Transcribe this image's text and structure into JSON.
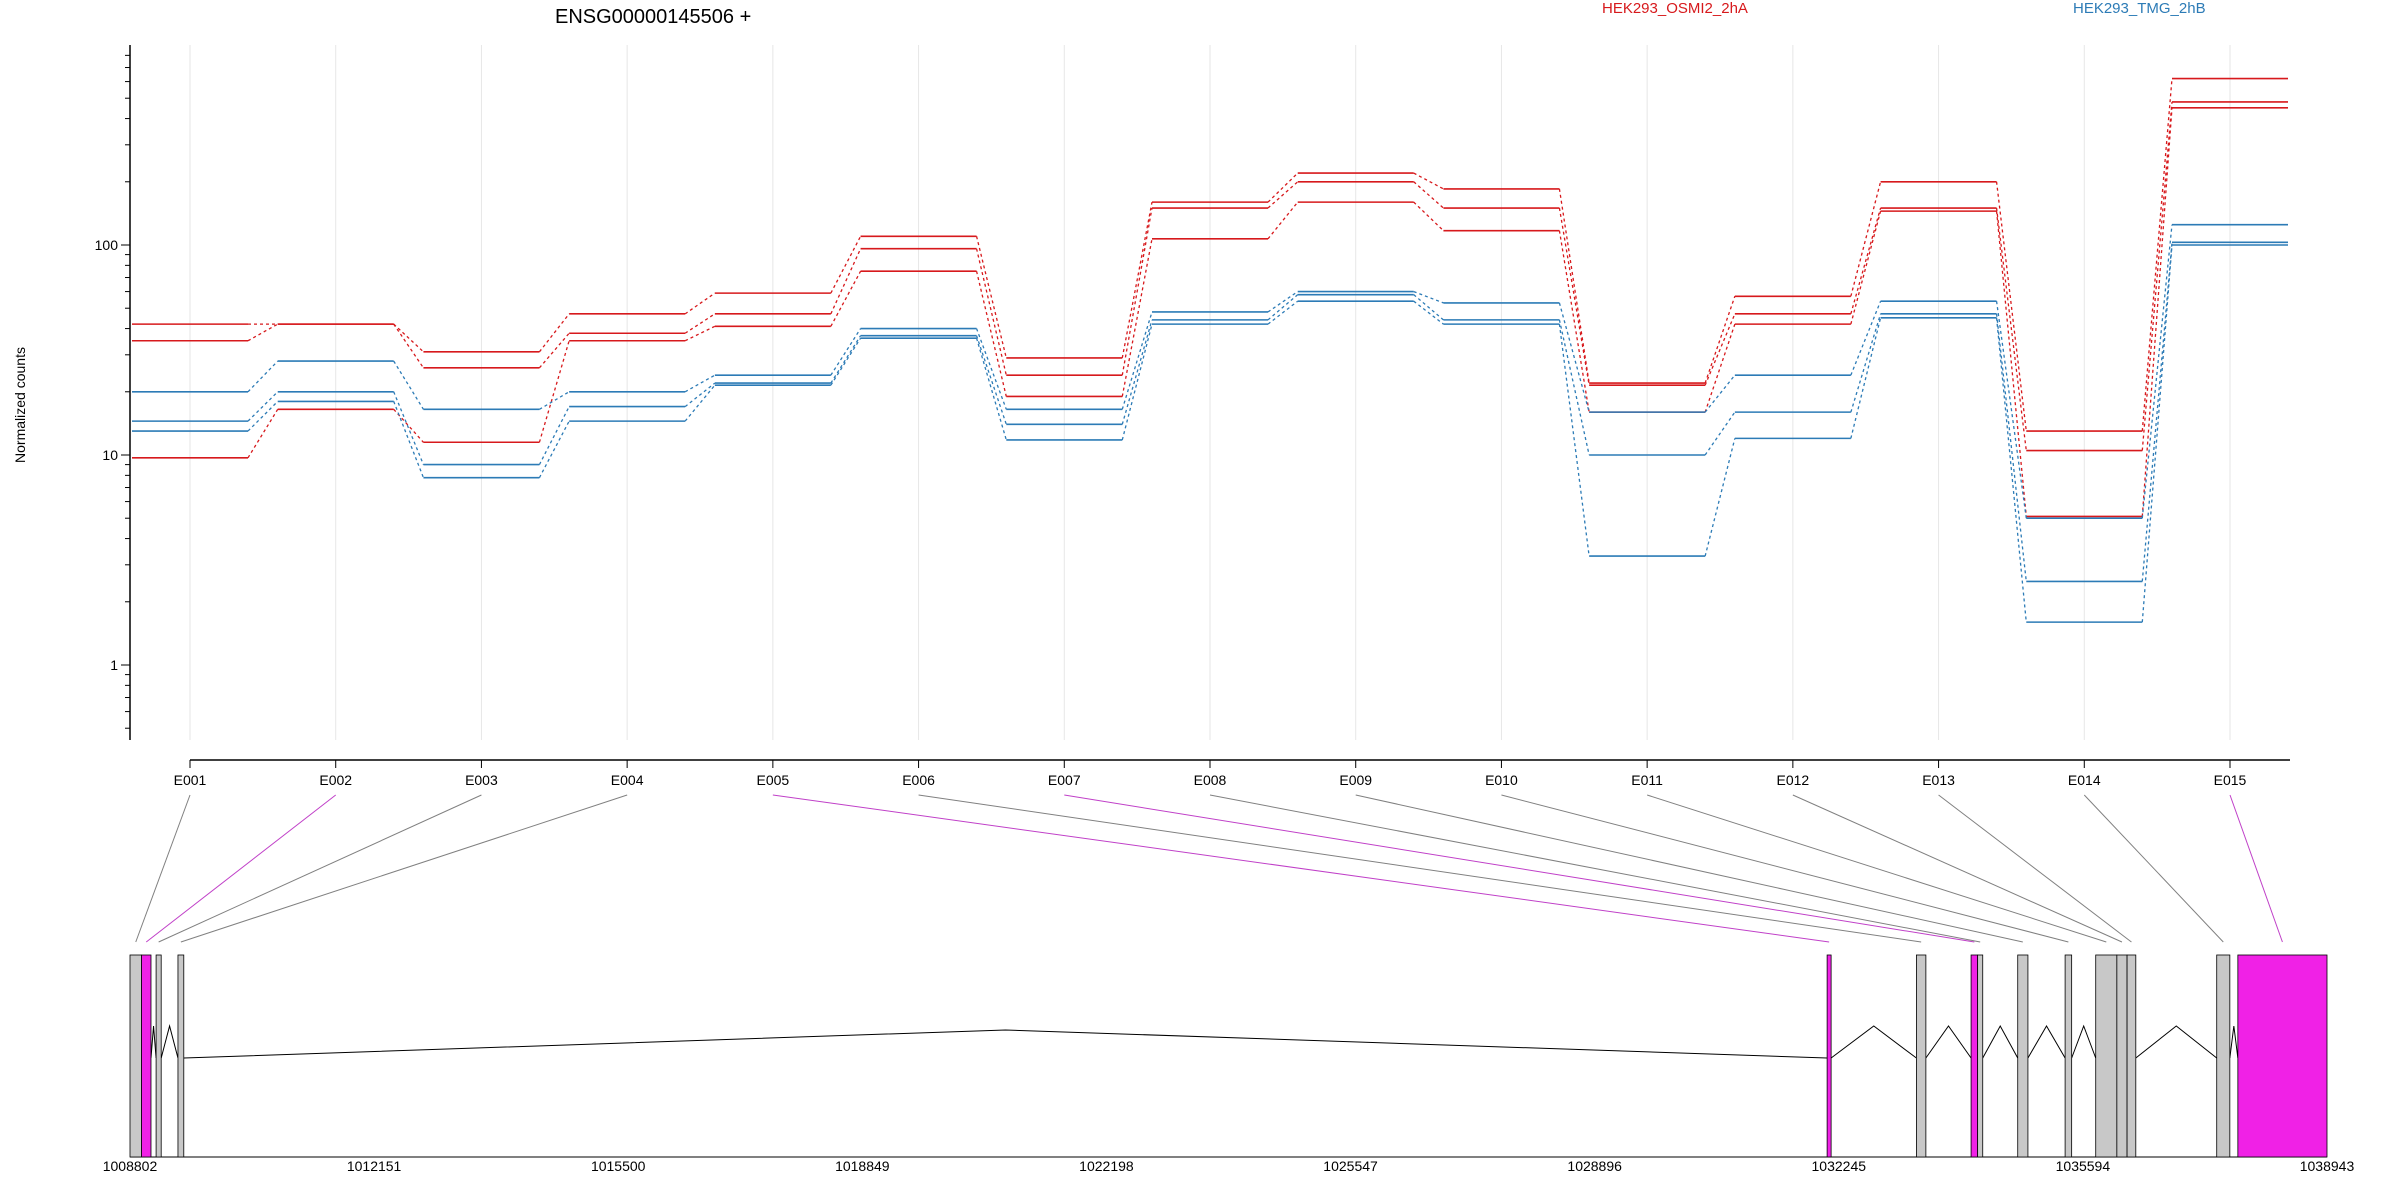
{
  "chart_data": {
    "type": "line",
    "title": "ENSG00000145506 +",
    "ylabel": "Normalized counts",
    "yscale": "log",
    "ylim": [
      0.5,
      800
    ],
    "yticks": [
      {
        "value": 1,
        "label": "1"
      },
      {
        "value": 10,
        "label": "10"
      },
      {
        "value": 100,
        "label": "100"
      }
    ],
    "categories": [
      "E001",
      "E002",
      "E003",
      "E004",
      "E005",
      "E006",
      "E007",
      "E008",
      "E009",
      "E010",
      "E011",
      "E012",
      "E013",
      "E014",
      "E015"
    ],
    "colors": {
      "HEK293_OSMI2_2hA": "#d7191c",
      "HEK293_TMG_2hB": "#2c7bb6"
    },
    "series": [
      {
        "name": "HEK293_OSMI2_2hA",
        "values": [
          42,
          42,
          31,
          47,
          59,
          110,
          29,
          160,
          220,
          185,
          22,
          57,
          200,
          13,
          620
        ]
      },
      {
        "name": "HEK293_OSMI2_2hA",
        "values": [
          35,
          42,
          26,
          38,
          47,
          96,
          24,
          150,
          200,
          150,
          21.5,
          47,
          150,
          10.5,
          480
        ]
      },
      {
        "name": "HEK293_OSMI2_2hA",
        "values": [
          9.7,
          16.5,
          11.5,
          35,
          41,
          75,
          19,
          107,
          160,
          117,
          16,
          42,
          145,
          5.1,
          450
        ]
      },
      {
        "name": "HEK293_TMG_2hB",
        "values": [
          20,
          28,
          16.5,
          20,
          24,
          40,
          16.5,
          48,
          60,
          53,
          16,
          24,
          54,
          5,
          125
        ]
      },
      {
        "name": "HEK293_TMG_2hB",
        "values": [
          14.5,
          20,
          9,
          17,
          22,
          37,
          14,
          44,
          58,
          44,
          10,
          16,
          47,
          2.5,
          103
        ]
      },
      {
        "name": "HEK293_TMG_2hB",
        "values": [
          13,
          18,
          7.8,
          14.5,
          21.5,
          36,
          11.8,
          42,
          54,
          42,
          3.3,
          12,
          45,
          1.6,
          100
        ]
      }
    ],
    "legend": [
      "HEK293_OSMI2_2hA",
      "HEK293_TMG_2hB"
    ],
    "legend_placement": "top-right",
    "gene_model": {
      "type": "exon-structure",
      "coord_range": [
        1008802,
        1038943
      ],
      "coord_ticks": [
        1008802,
        1012151,
        1015500,
        1018849,
        1022198,
        1025547,
        1028896,
        1032245,
        1035594,
        1038943
      ],
      "exon_color": "#c8c8c8",
      "highlight_color": "#f021e6",
      "exons": [
        {
          "start": 1008802,
          "end": 1008960,
          "highlight": false,
          "label": "E001"
        },
        {
          "start": 1008960,
          "end": 1009090,
          "highlight": true,
          "label": "E002"
        },
        {
          "start": 1009160,
          "end": 1009230,
          "highlight": false,
          "label": "E003"
        },
        {
          "start": 1009460,
          "end": 1009540,
          "highlight": false,
          "label": "E004"
        },
        {
          "start": 1032085,
          "end": 1032140,
          "highlight": true,
          "label": "E005"
        },
        {
          "start": 1033310,
          "end": 1033440,
          "highlight": false,
          "label": "E006"
        },
        {
          "start": 1034060,
          "end": 1034150,
          "highlight": true,
          "label": "E007"
        },
        {
          "start": 1034150,
          "end": 1034220,
          "highlight": false,
          "label": "E008"
        },
        {
          "start": 1034700,
          "end": 1034840,
          "highlight": false,
          "label": "E009"
        },
        {
          "start": 1035350,
          "end": 1035440,
          "highlight": false,
          "label": "E010"
        },
        {
          "start": 1035770,
          "end": 1036060,
          "highlight": false,
          "label": "E011"
        },
        {
          "start": 1036060,
          "end": 1036200,
          "highlight": false,
          "label": "E012"
        },
        {
          "start": 1036200,
          "end": 1036320,
          "highlight": false,
          "label": "E013"
        },
        {
          "start": 1037430,
          "end": 1037610,
          "highlight": false,
          "label": "E014"
        },
        {
          "start": 1037720,
          "end": 1038943,
          "highlight": true,
          "label": "E015"
        }
      ],
      "introns": [
        [
          1009090,
          1009160
        ],
        [
          1009230,
          1009460
        ],
        [
          1009540,
          1032085
        ],
        [
          1032140,
          1033310
        ],
        [
          1033440,
          1034060
        ],
        [
          1034220,
          1034700
        ],
        [
          1034840,
          1035350
        ],
        [
          1035440,
          1035770
        ],
        [
          1036320,
          1037430
        ],
        [
          1037610,
          1037720
        ]
      ]
    }
  }
}
